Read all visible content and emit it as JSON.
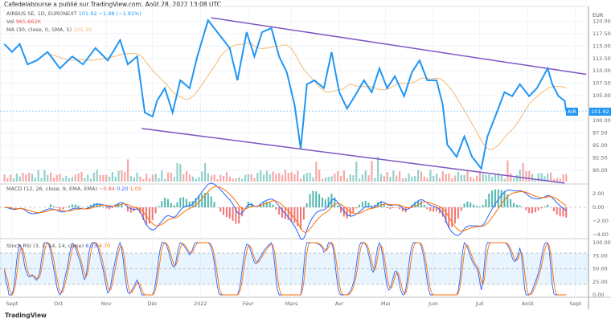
{
  "header": "Cafedelabourse a publié sur TradingView.com, Août 28, 2022 13:08 UTC",
  "legend": {
    "symbol": "AIRBUS SE, 1D, EURONEXT",
    "price": "101.92",
    "change": "−1.98 (−1.91%)",
    "vol_label": "Vol",
    "vol_value": "965.662K",
    "ma_label": "MA (30, close, 0, SMA, 5)",
    "ma_value": "105.39",
    "macd_label": "MACD (12, 26, close, 9, EMA, EMA)",
    "macd_values": [
      "−0.84",
      "0.20",
      "1.05"
    ],
    "stoch_label": "Stoch RSI (3, 3, 14, 14, close)",
    "stoch_values": [
      "6.13",
      "4.70"
    ]
  },
  "price_tag": {
    "ticker": "AIR",
    "value": "101.92"
  },
  "currency": "EUR",
  "logo": "TradingView",
  "colors": {
    "price": "#2196f3",
    "ma": "#f5b971",
    "trend": "#7e57c2",
    "up": "#26a69a",
    "down": "#ef5350",
    "macd": "#2962ff",
    "signal": "#ff6d00"
  },
  "chart_data": {
    "type": "line",
    "title": "AIRBUS SE, 1D, EURONEXT",
    "x_ticks": [
      [
        "2021-09-01",
        "Sept"
      ],
      [
        "2021-10-01",
        "Oct"
      ],
      [
        "2021-11-01",
        "Nov"
      ],
      [
        "2021-12-01",
        "Déc"
      ],
      [
        "2022-01-01",
        "2022"
      ],
      [
        "2022-02-01",
        "Févr"
      ],
      [
        "2022-03-01",
        "Mars"
      ],
      [
        "2022-04-01",
        "Avr"
      ],
      [
        "2022-05-01",
        "Mai"
      ],
      [
        "2022-06-01",
        "Juin"
      ],
      [
        "2022-07-01",
        "Juil"
      ],
      [
        "2022-08-01",
        "Août"
      ],
      [
        "2022-09-01",
        "Sept"
      ]
    ],
    "price_ticks": [
      "117.50",
      "115.00",
      "112.50",
      "110.00",
      "107.50",
      "105.00",
      "100.00",
      "97.50",
      "95.00",
      "92.50",
      "90.00"
    ],
    "price_top_tick": "120.00",
    "macd_ticks": [
      "2.00",
      "0.00",
      "−2.00",
      "−4.00"
    ],
    "stoch_ticks": [
      "100.00",
      "75.00",
      "50.00",
      "25.00",
      "0.00"
    ],
    "ylim": [
      87,
      122
    ],
    "series": [
      {
        "name": "AIRBUS SE",
        "points": [
          [
            "2021-08-27",
            115.4
          ],
          [
            "2021-09-01",
            113.8
          ],
          [
            "2021-09-06",
            115.4
          ],
          [
            "2021-09-11",
            111.3
          ],
          [
            "2021-09-17",
            112.1
          ],
          [
            "2021-09-24",
            113.8
          ],
          [
            "2021-10-02",
            110.5
          ],
          [
            "2021-10-10",
            112.9
          ],
          [
            "2021-10-17",
            111.3
          ],
          [
            "2021-10-25",
            114.6
          ],
          [
            "2021-11-02",
            112.1
          ],
          [
            "2021-11-10",
            116.2
          ],
          [
            "2021-11-15",
            111.3
          ],
          [
            "2021-11-21",
            112.9
          ],
          [
            "2021-11-26",
            101.6
          ],
          [
            "2021-12-01",
            100.8
          ],
          [
            "2021-12-04",
            104.0
          ],
          [
            "2021-12-09",
            106.5
          ],
          [
            "2021-12-14",
            101.6
          ],
          [
            "2021-12-19",
            108.1
          ],
          [
            "2021-12-25",
            106.5
          ],
          [
            "2021-12-30",
            112.9
          ],
          [
            "2022-01-06",
            120.2
          ],
          [
            "2022-01-12",
            117.8
          ],
          [
            "2022-01-20",
            114.6
          ],
          [
            "2022-01-25",
            108.1
          ],
          [
            "2022-01-31",
            117.8
          ],
          [
            "2022-02-05",
            112.9
          ],
          [
            "2022-02-10",
            117.8
          ],
          [
            "2022-02-16",
            118.6
          ],
          [
            "2022-02-21",
            112.9
          ],
          [
            "2022-02-26",
            109.7
          ],
          [
            "2022-03-03",
            103.2
          ],
          [
            "2022-03-07",
            94.3
          ],
          [
            "2022-03-11",
            107.3
          ],
          [
            "2022-03-16",
            108.1
          ],
          [
            "2022-03-22",
            106.5
          ],
          [
            "2022-03-27",
            113.8
          ],
          [
            "2022-04-01",
            105.7
          ],
          [
            "2022-04-06",
            102.4
          ],
          [
            "2022-04-11",
            104.9
          ],
          [
            "2022-04-17",
            108.1
          ],
          [
            "2022-04-22",
            105.7
          ],
          [
            "2022-04-27",
            110.5
          ],
          [
            "2022-05-02",
            106.5
          ],
          [
            "2022-05-07",
            108.9
          ],
          [
            "2022-05-13",
            104.9
          ],
          [
            "2022-05-18",
            109.7
          ],
          [
            "2022-05-23",
            112.1
          ],
          [
            "2022-05-28",
            108.1
          ],
          [
            "2022-06-03",
            108.1
          ],
          [
            "2022-06-07",
            103.2
          ],
          [
            "2022-06-10",
            95.1
          ],
          [
            "2022-06-16",
            92.7
          ],
          [
            "2022-06-21",
            96.8
          ],
          [
            "2022-06-26",
            92.7
          ],
          [
            "2022-07-02",
            90.3
          ],
          [
            "2022-07-06",
            96.8
          ],
          [
            "2022-07-12",
            101.6
          ],
          [
            "2022-07-17",
            105.7
          ],
          [
            "2022-07-22",
            104.9
          ],
          [
            "2022-07-27",
            107.3
          ],
          [
            "2022-08-02",
            104.9
          ],
          [
            "2022-08-07",
            106.5
          ],
          [
            "2022-08-14",
            110.5
          ],
          [
            "2022-08-17",
            107.3
          ],
          [
            "2022-08-21",
            104.9
          ],
          [
            "2022-08-25",
            104.0
          ],
          [
            "2022-08-26",
            101.92
          ]
        ]
      }
    ],
    "trendlines": [
      {
        "from": [
          "2022-01-08",
          120.7
        ],
        "to": [
          "2022-09-08",
          109.3
        ]
      },
      {
        "from": [
          "2021-11-24",
          98.4
        ],
        "to": [
          "2022-08-25",
          87.4
        ]
      }
    ]
  }
}
